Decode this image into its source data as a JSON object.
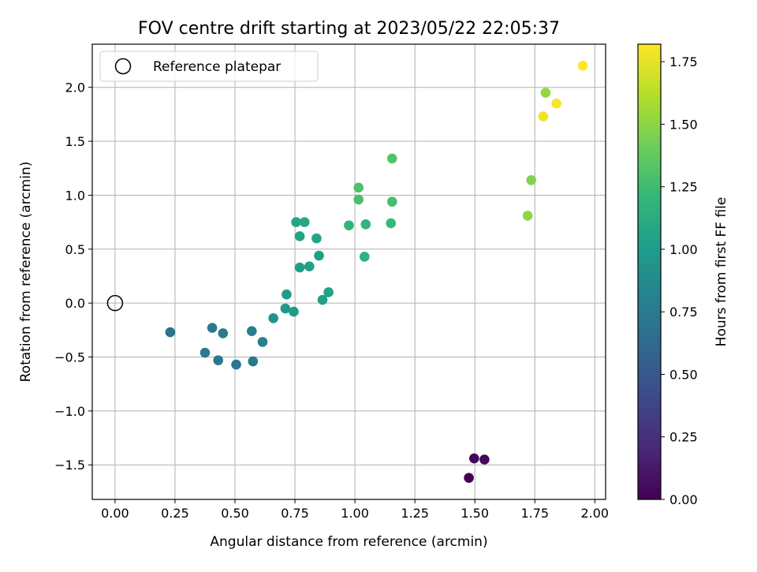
{
  "chart_data": {
    "type": "scatter",
    "title": "FOV centre drift starting at 2023/05/22 22:05:37",
    "xlabel": "Angular distance from reference (arcmin)",
    "ylabel": "Rotation from reference (arcmin)",
    "xlim": [
      -0.095,
      2.045
    ],
    "ylim": [
      -1.82,
      2.4
    ],
    "x_ticks": [
      0.0,
      0.25,
      0.5,
      0.75,
      1.0,
      1.25,
      1.5,
      1.75,
      2.0
    ],
    "x_tick_labels": [
      "0.00",
      "0.25",
      "0.50",
      "0.75",
      "1.00",
      "1.25",
      "1.50",
      "1.75",
      "2.00"
    ],
    "y_ticks": [
      -1.5,
      -1.0,
      -0.5,
      0.0,
      0.5,
      1.0,
      1.5,
      2.0
    ],
    "y_tick_labels": [
      "−1.5",
      "−1.0",
      "−0.5",
      "0.0",
      "0.5",
      "1.0",
      "1.5",
      "2.0"
    ],
    "grid": true,
    "legend": {
      "position": "top-left",
      "entries": [
        {
          "label": "Reference platepar",
          "marker": "open-circle",
          "color": "#000000"
        }
      ]
    },
    "reference_point": {
      "x": 0.0,
      "y": 0.0
    },
    "colorbar": {
      "label": "Hours from first FF file",
      "colormap": "viridis",
      "range": [
        0.0,
        1.82
      ],
      "ticks": [
        0.0,
        0.25,
        0.5,
        0.75,
        1.0,
        1.25,
        1.5,
        1.75
      ],
      "tick_labels": [
        "0.00",
        "0.25",
        "0.50",
        "0.75",
        "1.00",
        "1.25",
        "1.50",
        "1.75"
      ],
      "stops": [
        "#440154",
        "#482878",
        "#3e4989",
        "#31688e",
        "#26828e",
        "#1f9e89",
        "#35b779",
        "#6ece58",
        "#b5de2b",
        "#fde725"
      ]
    },
    "points": [
      {
        "x": 1.475,
        "y": -1.62,
        "hours": 0.0
      },
      {
        "x": 1.497,
        "y": -1.44,
        "hours": 0.02
      },
      {
        "x": 1.54,
        "y": -1.45,
        "hours": 0.04
      },
      {
        "x": 0.23,
        "y": -0.27,
        "hours": 0.7
      },
      {
        "x": 0.405,
        "y": -0.23,
        "hours": 0.75
      },
      {
        "x": 0.45,
        "y": -0.28,
        "hours": 0.76
      },
      {
        "x": 0.375,
        "y": -0.46,
        "hours": 0.74
      },
      {
        "x": 0.43,
        "y": -0.53,
        "hours": 0.72
      },
      {
        "x": 0.505,
        "y": -0.57,
        "hours": 0.71
      },
      {
        "x": 0.57,
        "y": -0.26,
        "hours": 0.78
      },
      {
        "x": 0.575,
        "y": -0.54,
        "hours": 0.73
      },
      {
        "x": 0.615,
        "y": -0.36,
        "hours": 0.79
      },
      {
        "x": 0.66,
        "y": -0.14,
        "hours": 0.93
      },
      {
        "x": 0.71,
        "y": -0.05,
        "hours": 0.98
      },
      {
        "x": 0.745,
        "y": -0.08,
        "hours": 1.0
      },
      {
        "x": 0.715,
        "y": 0.08,
        "hours": 0.99
      },
      {
        "x": 0.865,
        "y": 0.03,
        "hours": 1.02
      },
      {
        "x": 0.89,
        "y": 0.1,
        "hours": 1.04
      },
      {
        "x": 0.77,
        "y": 0.33,
        "hours": 1.02
      },
      {
        "x": 0.81,
        "y": 0.34,
        "hours": 1.03
      },
      {
        "x": 0.85,
        "y": 0.44,
        "hours": 1.01
      },
      {
        "x": 0.77,
        "y": 0.62,
        "hours": 1.05
      },
      {
        "x": 0.84,
        "y": 0.6,
        "hours": 1.06
      },
      {
        "x": 0.755,
        "y": 0.75,
        "hours": 1.07
      },
      {
        "x": 0.79,
        "y": 0.75,
        "hours": 1.08
      },
      {
        "x": 0.975,
        "y": 0.72,
        "hours": 1.18
      },
      {
        "x": 1.045,
        "y": 0.73,
        "hours": 1.19
      },
      {
        "x": 1.04,
        "y": 0.43,
        "hours": 1.17
      },
      {
        "x": 1.15,
        "y": 0.74,
        "hours": 1.22
      },
      {
        "x": 1.015,
        "y": 0.96,
        "hours": 1.28
      },
      {
        "x": 1.015,
        "y": 1.07,
        "hours": 1.3
      },
      {
        "x": 1.155,
        "y": 0.94,
        "hours": 1.27
      },
      {
        "x": 1.155,
        "y": 1.34,
        "hours": 1.32
      },
      {
        "x": 1.72,
        "y": 0.81,
        "hours": 1.5
      },
      {
        "x": 1.735,
        "y": 1.14,
        "hours": 1.47
      },
      {
        "x": 1.795,
        "y": 1.95,
        "hours": 1.53
      },
      {
        "x": 1.785,
        "y": 1.73,
        "hours": 1.78
      },
      {
        "x": 1.84,
        "y": 1.85,
        "hours": 1.8
      },
      {
        "x": 1.95,
        "y": 2.2,
        "hours": 1.82
      }
    ]
  }
}
